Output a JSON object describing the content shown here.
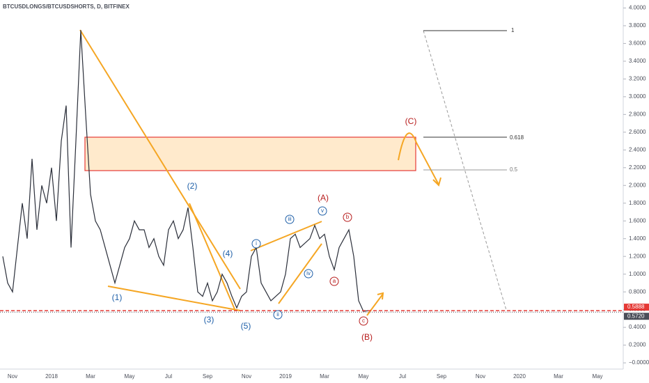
{
  "chart_data": {
    "type": "line",
    "title": "BTCUSDLONGS/BTCUSDSHORTS, D, BITFINEX",
    "categories": [
      null,
      null,
      "Nov",
      null,
      null,
      null,
      null,
      null,
      null,
      null,
      "2018",
      null,
      null,
      null,
      null,
      null,
      null,
      null,
      "Mar",
      null,
      null,
      null,
      null,
      null,
      null,
      null,
      "May",
      null,
      null,
      null,
      null,
      null,
      null,
      null,
      "Jul",
      null,
      null,
      null,
      null,
      null,
      null,
      null,
      "Sep",
      null,
      null,
      null,
      null,
      null,
      null,
      null,
      "Nov",
      null,
      null,
      null,
      null,
      null,
      null,
      null,
      "2019",
      null,
      null,
      null,
      null,
      null,
      null,
      null,
      "Mar",
      null,
      null,
      null,
      null,
      null,
      null,
      null,
      "May",
      null,
      null,
      null,
      null,
      null,
      null,
      null,
      "Jul",
      null,
      null,
      null,
      null,
      null,
      null,
      null,
      "Sep",
      null,
      null,
      null,
      null,
      null,
      null,
      null,
      "Nov",
      null,
      null,
      null,
      null,
      null,
      null,
      null,
      "2020",
      null,
      null,
      null,
      null,
      null,
      null,
      null,
      "Mar",
      null,
      null,
      null,
      null,
      null,
      null,
      null,
      "May",
      null,
      null,
      null,
      null
    ],
    "values": [
      1.2,
      0.9,
      0.8,
      1.3,
      1.8,
      1.4,
      2.3,
      1.5,
      2.0,
      1.8,
      2.2,
      1.6,
      2.5,
      2.9,
      1.3,
      2.5,
      3.75,
      2.8,
      1.9,
      1.6,
      1.5,
      1.3,
      1.1,
      0.9,
      1.1,
      1.3,
      1.4,
      1.6,
      1.5,
      1.5,
      1.3,
      1.4,
      1.2,
      1.1,
      1.5,
      1.6,
      1.4,
      1.5,
      1.75,
      1.3,
      0.8,
      0.75,
      0.9,
      0.7,
      0.8,
      1.0,
      0.9,
      0.75,
      0.62,
      0.75,
      0.8,
      1.2,
      1.3,
      0.9,
      0.8,
      0.7,
      0.75,
      0.8,
      1.0,
      1.4,
      1.45,
      1.3,
      1.35,
      1.4,
      1.55,
      1.4,
      1.45,
      1.2,
      1.05,
      1.3,
      1.4,
      1.5,
      1.2,
      0.7,
      0.58,
      0.59,
      null,
      null,
      null,
      null,
      null,
      null,
      null,
      null,
      null,
      null,
      null,
      null,
      null,
      null,
      null,
      null,
      null,
      null,
      null,
      null,
      null,
      null,
      null,
      null,
      null,
      null,
      null,
      null,
      null,
      null,
      null,
      null,
      null,
      null,
      null,
      null,
      null,
      null,
      null,
      null,
      null,
      null,
      null,
      null,
      null,
      null,
      null,
      null,
      null,
      null,
      null
    ],
    "color": "#2a2e39",
    "ylim": [
      -0.07,
      4.09
    ],
    "yticks": [
      {
        "value": 4,
        "label": "4.0000"
      },
      {
        "value": 3.8,
        "label": "3.8000"
      },
      {
        "value": 3.6,
        "label": "3.6000"
      },
      {
        "value": 3.4,
        "label": "3.4000"
      },
      {
        "value": 3.2,
        "label": "3.2000"
      },
      {
        "value": 3,
        "label": "3.0000"
      },
      {
        "value": 2.8,
        "label": "2.8000"
      },
      {
        "value": 2.6,
        "label": "2.6000"
      },
      {
        "value": 2.4,
        "label": "2.4000"
      },
      {
        "value": 2.2,
        "label": "2.2000"
      },
      {
        "value": 2,
        "label": "2.0000"
      },
      {
        "value": 1.8,
        "label": "1.8000"
      },
      {
        "value": 1.6,
        "label": "1.6000"
      },
      {
        "value": 1.4,
        "label": "1.4000"
      },
      {
        "value": 1.2,
        "label": "1.2000"
      },
      {
        "value": 1,
        "label": "1.0000"
      },
      {
        "value": 0.8,
        "label": "0.8000"
      },
      {
        "value": 0.6,
        "label": "0.6000"
      },
      {
        "value": 0.4,
        "label": "0.4000"
      },
      {
        "value": 0.2,
        "label": "0.2000"
      },
      {
        "value": 0,
        "label": "−0.0000"
      }
    ],
    "grid": false,
    "price_lines": [
      {
        "value": 0.5888,
        "label": "0.5888",
        "color": "#e53935"
      },
      {
        "value": 0.572,
        "label": "0.5720",
        "color": "#4a4e59"
      }
    ],
    "annotations": [
      {
        "text": "(1)",
        "color": "#1e5fa8",
        "circled": false
      },
      {
        "text": "(2)",
        "color": "#1e5fa8",
        "circled": false
      },
      {
        "text": "(3)",
        "color": "#1e5fa8",
        "circled": false
      },
      {
        "text": "(4)",
        "color": "#1e5fa8",
        "circled": false
      },
      {
        "text": "(5)",
        "color": "#1e5fa8",
        "circled": false
      },
      {
        "text": "i",
        "color": "#1e5fa8",
        "circled": true
      },
      {
        "text": "ii",
        "color": "#1e5fa8",
        "circled": true
      },
      {
        "text": "iii",
        "color": "#1e5fa8",
        "circled": true
      },
      {
        "text": "iv",
        "color": "#1e5fa8",
        "circled": true
      },
      {
        "text": "v",
        "color": "#1e5fa8",
        "circled": true
      },
      {
        "text": "(A)",
        "color": "#b71c1c",
        "circled": false
      },
      {
        "text": "a",
        "color": "#b71c1c",
        "circled": true
      },
      {
        "text": "b",
        "color": "#b71c1c",
        "circled": true
      },
      {
        "text": "c",
        "color": "#b71c1c",
        "circled": true
      },
      {
        "text": "(B)",
        "color": "#b71c1c",
        "circled": false
      },
      {
        "text": "(C)",
        "color": "#b71c1c",
        "circled": false
      },
      {
        "text": "1",
        "color": "#333333",
        "circled": false
      },
      {
        "text": "0.618",
        "color": "#333333",
        "circled": false
      },
      {
        "text": "0.5",
        "color": "#777777",
        "circled": false
      }
    ]
  }
}
